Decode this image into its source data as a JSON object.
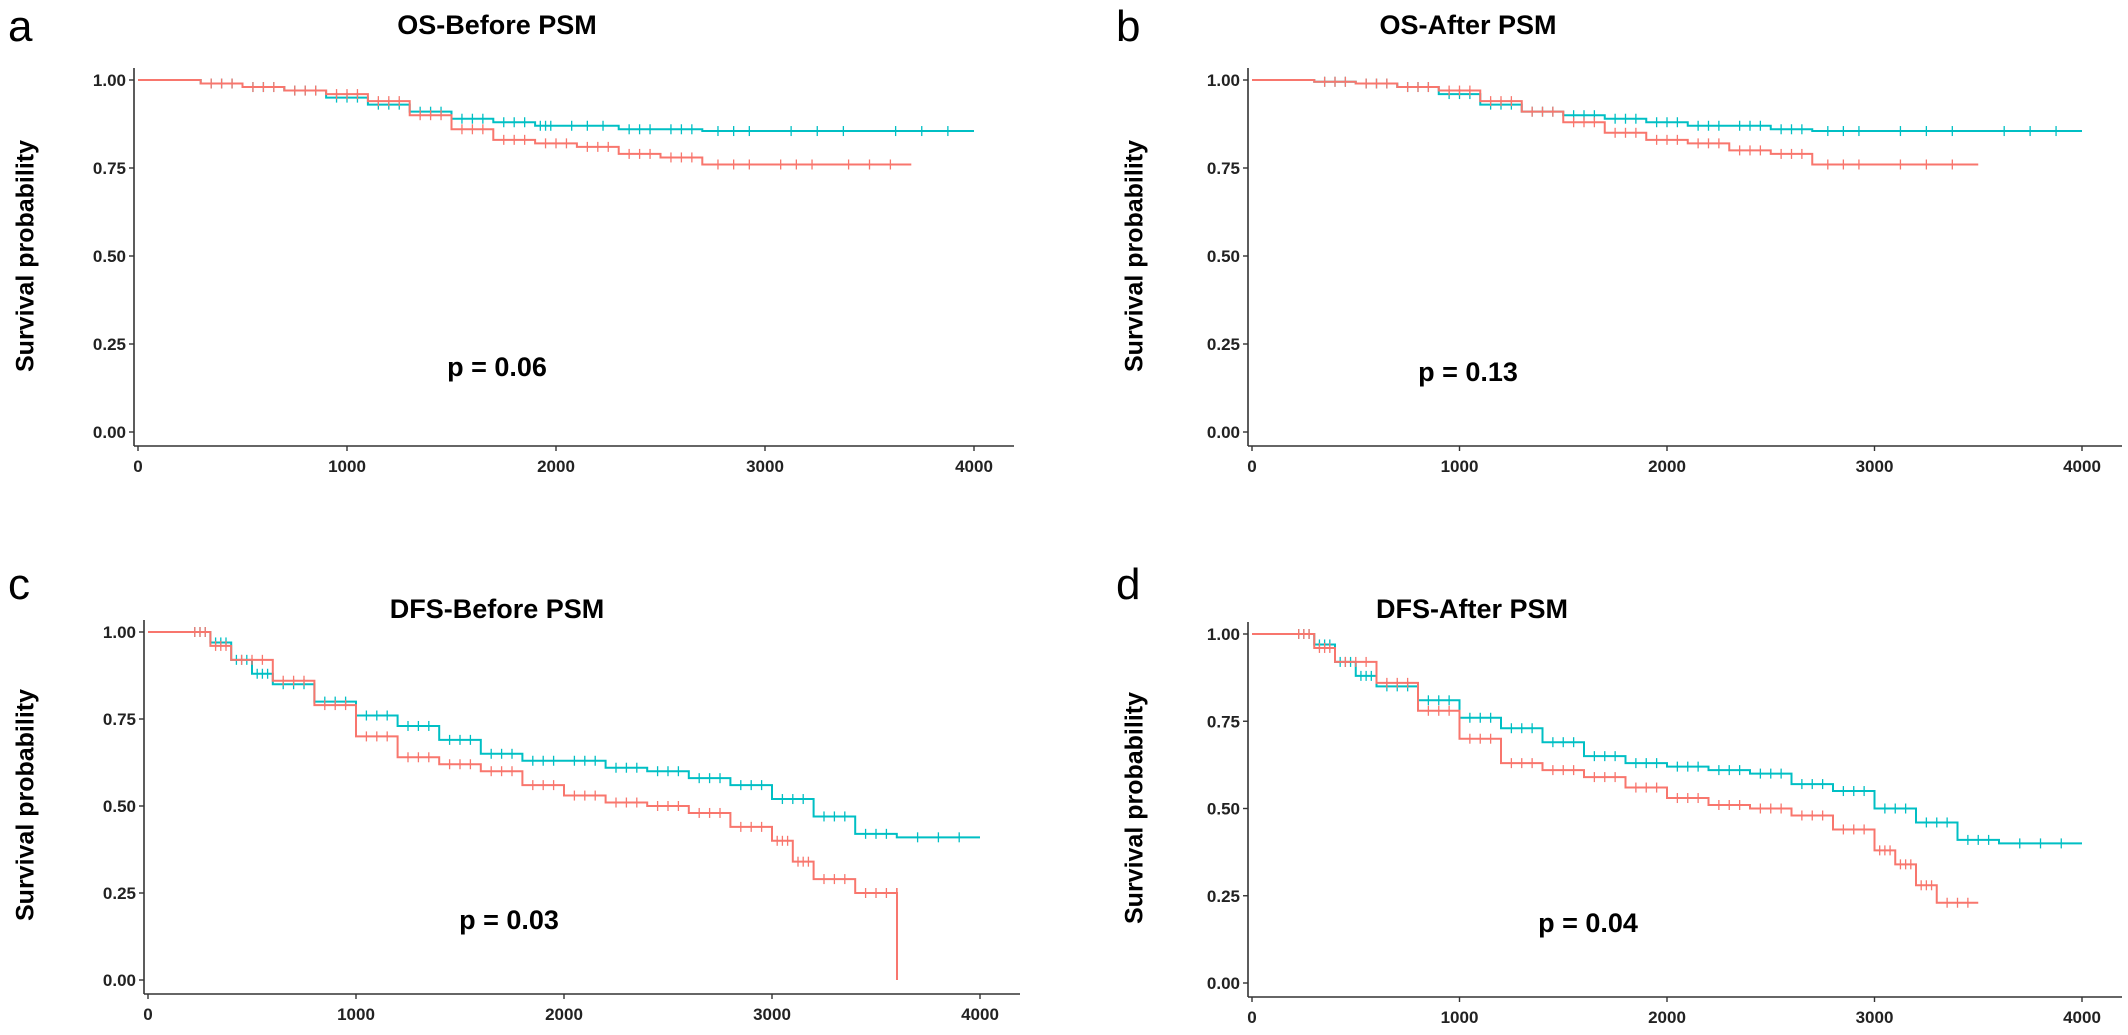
{
  "colors": {
    "red_group": "#F8766D",
    "cyan_group": "#00BFC4",
    "axis": "#333333"
  },
  "chart_data": [
    {
      "panel": "a",
      "title": "OS-Before PSM",
      "type": "line",
      "ylabel": "Survival probability",
      "xlabel": "",
      "xlim": [
        0,
        4000
      ],
      "ylim": [
        0,
        1
      ],
      "x_ticks": [
        "0",
        "1000",
        "2000",
        "3000",
        "4000"
      ],
      "y_ticks": [
        "0.00",
        "0.25",
        "0.50",
        "0.75",
        "1.00"
      ],
      "annotation": "p = 0.06",
      "series": [
        {
          "color": "#00BFC4",
          "x": [
            0,
            300,
            500,
            700,
            900,
            1100,
            1300,
            1500,
            1700,
            1900,
            2000,
            2300,
            2500,
            2700,
            3000,
            3500,
            4000
          ],
          "y": [
            1.0,
            0.99,
            0.98,
            0.97,
            0.95,
            0.93,
            0.91,
            0.89,
            0.88,
            0.87,
            0.87,
            0.86,
            0.86,
            0.855,
            0.855,
            0.855,
            0.855
          ]
        },
        {
          "color": "#F8766D",
          "x": [
            0,
            300,
            500,
            700,
            900,
            1100,
            1300,
            1500,
            1700,
            1900,
            2100,
            2300,
            2500,
            2700,
            3000,
            3300,
            3700
          ],
          "y": [
            1.0,
            0.99,
            0.98,
            0.97,
            0.96,
            0.94,
            0.9,
            0.86,
            0.83,
            0.82,
            0.81,
            0.79,
            0.78,
            0.76,
            0.76,
            0.76,
            0.76
          ]
        }
      ]
    },
    {
      "panel": "b",
      "title": "OS-After PSM",
      "type": "line",
      "ylabel": "Survival probability",
      "xlabel": "",
      "xlim": [
        0,
        4000
      ],
      "ylim": [
        0,
        1
      ],
      "x_ticks": [
        "0",
        "1000",
        "2000",
        "3000",
        "4000"
      ],
      "y_ticks": [
        "0.00",
        "0.25",
        "0.50",
        "0.75",
        "1.00"
      ],
      "annotation": "p = 0.13",
      "series": [
        {
          "color": "#00BFC4",
          "x": [
            0,
            300,
            500,
            700,
            900,
            1100,
            1300,
            1500,
            1700,
            1900,
            2100,
            2300,
            2500,
            2700,
            3000,
            3500,
            4000
          ],
          "y": [
            1.0,
            0.995,
            0.99,
            0.98,
            0.96,
            0.93,
            0.91,
            0.9,
            0.89,
            0.88,
            0.87,
            0.87,
            0.86,
            0.855,
            0.855,
            0.855,
            0.855
          ]
        },
        {
          "color": "#F8766D",
          "x": [
            0,
            300,
            500,
            700,
            900,
            1100,
            1300,
            1500,
            1700,
            1900,
            2100,
            2300,
            2500,
            2700,
            3000,
            3500
          ],
          "y": [
            1.0,
            0.995,
            0.99,
            0.98,
            0.97,
            0.94,
            0.91,
            0.88,
            0.85,
            0.83,
            0.82,
            0.8,
            0.79,
            0.76,
            0.76,
            0.76
          ]
        }
      ]
    },
    {
      "panel": "c",
      "title": "DFS-Before PSM",
      "type": "line",
      "ylabel": "Survival probability",
      "xlabel": "",
      "xlim": [
        0,
        4000
      ],
      "ylim": [
        0,
        1
      ],
      "x_ticks": [
        "0",
        "1000",
        "2000",
        "3000",
        "4000"
      ],
      "y_ticks": [
        "0.00",
        "0.25",
        "0.50",
        "0.75",
        "1.00"
      ],
      "annotation": "p = 0.03",
      "series": [
        {
          "color": "#00BFC4",
          "x": [
            0,
            200,
            300,
            400,
            500,
            600,
            800,
            1000,
            1200,
            1400,
            1600,
            1800,
            2000,
            2200,
            2400,
            2600,
            2800,
            3000,
            3200,
            3400,
            3600,
            4000
          ],
          "y": [
            1.0,
            1.0,
            0.97,
            0.92,
            0.88,
            0.85,
            0.8,
            0.76,
            0.73,
            0.69,
            0.65,
            0.63,
            0.63,
            0.61,
            0.6,
            0.58,
            0.56,
            0.52,
            0.47,
            0.42,
            0.41,
            0.41
          ]
        },
        {
          "color": "#F8766D",
          "x": [
            0,
            200,
            300,
            400,
            600,
            800,
            1000,
            1200,
            1400,
            1600,
            1800,
            2000,
            2200,
            2400,
            2600,
            2800,
            3000,
            3100,
            3200,
            3400,
            3600,
            3601
          ],
          "y": [
            1.0,
            1.0,
            0.96,
            0.92,
            0.86,
            0.79,
            0.7,
            0.64,
            0.62,
            0.6,
            0.56,
            0.53,
            0.51,
            0.5,
            0.48,
            0.44,
            0.4,
            0.34,
            0.29,
            0.25,
            0.25,
            0.0
          ]
        }
      ]
    },
    {
      "panel": "d",
      "title": "DFS-After PSM",
      "type": "line",
      "ylabel": "Survival probability",
      "xlabel": "",
      "xlim": [
        0,
        4000
      ],
      "ylim": [
        0,
        1
      ],
      "x_ticks": [
        "0",
        "1000",
        "2000",
        "3000",
        "4000"
      ],
      "y_ticks": [
        "0.00",
        "0.25",
        "0.50",
        "0.75",
        "1.00"
      ],
      "annotation": "p = 0.04",
      "series": [
        {
          "color": "#00BFC4",
          "x": [
            0,
            200,
            300,
            400,
            500,
            600,
            800,
            1000,
            1200,
            1400,
            1600,
            1800,
            2000,
            2200,
            2400,
            2600,
            2800,
            3000,
            3200,
            3400,
            3600,
            4000
          ],
          "y": [
            1.0,
            1.0,
            0.97,
            0.92,
            0.88,
            0.85,
            0.81,
            0.76,
            0.73,
            0.69,
            0.65,
            0.63,
            0.62,
            0.61,
            0.6,
            0.57,
            0.55,
            0.5,
            0.46,
            0.41,
            0.4,
            0.4
          ]
        },
        {
          "color": "#F8766D",
          "x": [
            0,
            200,
            300,
            400,
            600,
            800,
            1000,
            1200,
            1400,
            1600,
            1800,
            2000,
            2200,
            2400,
            2600,
            2800,
            3000,
            3100,
            3200,
            3300,
            3500
          ],
          "y": [
            1.0,
            1.0,
            0.96,
            0.92,
            0.86,
            0.78,
            0.7,
            0.63,
            0.61,
            0.59,
            0.56,
            0.53,
            0.51,
            0.5,
            0.48,
            0.44,
            0.38,
            0.34,
            0.28,
            0.23,
            0.23
          ]
        }
      ]
    }
  ]
}
